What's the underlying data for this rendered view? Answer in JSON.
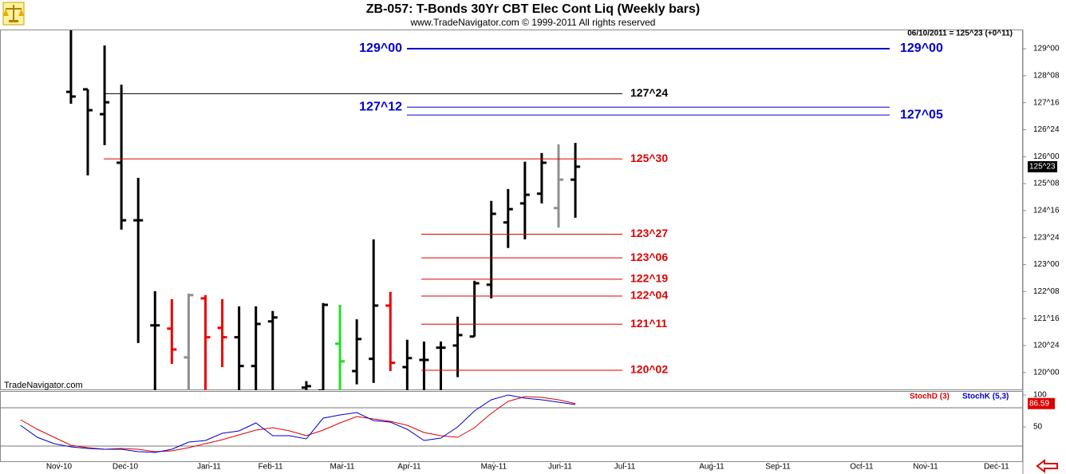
{
  "header": {
    "title": "ZB-057:  T-Bonds 30Yr CBT Elec Cont Liq  (Weekly bars)",
    "subtitle": "www.TradeNavigator.com © 1999-2011 All rights reserved",
    "quote": "06/10/2011 = 125^23 (+0^11)",
    "watermark": "TradeNavigator.com"
  },
  "chart_data": [
    {
      "type": "ohlc",
      "xlim": [
        -4.22,
        56.62
      ],
      "ylim": [
        119.53,
        129.51
      ],
      "x": [
        0,
        1,
        2,
        3,
        4,
        5,
        6,
        7,
        8,
        9,
        10,
        11,
        12,
        14,
        15,
        16,
        17,
        18,
        19,
        20,
        21,
        22,
        23,
        24,
        25,
        26,
        27,
        28,
        29,
        30
      ],
      "open": [
        127.8,
        127.87,
        127.18,
        125.83,
        124.23,
        121.31,
        121.22,
        120.42,
        122.06,
        121.24,
        120.98,
        120.18,
        121.42,
        119.58,
        119.5,
        120.8,
        120.04,
        120.38,
        121.86,
        120.15,
        120.35,
        120.69,
        120.75,
        121.0,
        122.44,
        124.17,
        124.7,
        124.97,
        124.57,
        125.36
      ],
      "high": [
        129.58,
        127.87,
        129.09,
        128.0,
        125.41,
        122.26,
        122.04,
        122.19,
        122.15,
        122.04,
        121.84,
        121.84,
        121.71,
        119.76,
        121.93,
        121.88,
        121.48,
        123.7,
        122.24,
        120.91,
        120.86,
        120.86,
        121.55,
        122.55,
        124.77,
        125.1,
        125.86,
        126.1,
        126.34,
        126.38
      ],
      "low": [
        127.47,
        125.48,
        126.32,
        123.97,
        120.82,
        119.4,
        120.24,
        119.4,
        119.4,
        120.15,
        119.4,
        119.4,
        119.4,
        119.4,
        119.4,
        119.4,
        119.67,
        119.71,
        120.04,
        119.4,
        119.4,
        119.4,
        119.87,
        121.0,
        122.06,
        123.46,
        123.7,
        124.7,
        124.03,
        124.3
      ],
      "close": [
        127.67,
        127.29,
        127.51,
        124.23,
        124.23,
        121.31,
        120.64,
        122.15,
        120.98,
        120.98,
        120.18,
        121.35,
        121.53,
        119.62,
        121.88,
        120.31,
        120.93,
        121.86,
        120.27,
        120.4,
        120.35,
        120.69,
        121.04,
        122.48,
        124.41,
        124.54,
        124.94,
        125.83,
        125.36,
        125.72
      ],
      "colors": [
        "#000000",
        "#000000",
        "#000000",
        "#000000",
        "#000000",
        "#000000",
        "#ee0000",
        "#909090",
        "#ee0000",
        "#ee0000",
        "#000000",
        "#000000",
        "#000000",
        "#000000",
        "#000000",
        "#22dd22",
        "#000000",
        "#000000",
        "#ee0000",
        "#000000",
        "#000000",
        "#000000",
        "#000000",
        "#000000",
        "#000000",
        "#000000",
        "#000000",
        "#000000",
        "#909090",
        "#000000"
      ],
      "yticks": [
        {
          "value": 120,
          "label": "120^00"
        },
        {
          "value": 120.75,
          "label": "120^24"
        },
        {
          "value": 121.5,
          "label": "121^16"
        },
        {
          "value": 122.25,
          "label": "122^08"
        },
        {
          "value": 123,
          "label": "123^00"
        },
        {
          "value": 123.75,
          "label": "123^24"
        },
        {
          "value": 124.5,
          "label": "124^16"
        },
        {
          "value": 125.25,
          "label": "125^08"
        },
        {
          "value": 126,
          "label": "126^00"
        },
        {
          "value": 126.75,
          "label": "126^24"
        },
        {
          "value": 127.5,
          "label": "127^16"
        },
        {
          "value": 128.25,
          "label": "128^08"
        },
        {
          "value": 129,
          "label": "129^00"
        }
      ],
      "last_price": {
        "value": 125.71875,
        "label": "125^23"
      },
      "levels": [
        {
          "value": 129,
          "label": "129^00",
          "color": "#0000cc"
        },
        {
          "value": 127.75,
          "label": "127^24",
          "color": "#000000"
        },
        {
          "value": 127.375,
          "label": "127^12",
          "color": "#0000cc"
        },
        {
          "value": 127.15625,
          "label": "127^05",
          "color": "#0000cc"
        },
        {
          "value": 125.9375,
          "label": "125^30",
          "color": "#dd0000"
        },
        {
          "value": 123.84375,
          "label": "123^27",
          "color": "#dd0000"
        },
        {
          "value": 123.1875,
          "label": "123^06",
          "color": "#dd0000"
        },
        {
          "value": 122.59375,
          "label": "122^19",
          "color": "#dd0000"
        },
        {
          "value": 122.125,
          "label": "122^04",
          "color": "#dd0000"
        },
        {
          "value": 121.34375,
          "label": "121^11",
          "color": "#dd0000"
        },
        {
          "value": 120.0625,
          "label": "120^02",
          "color": "#dd0000"
        }
      ]
    },
    {
      "type": "line",
      "xlim": [
        -4.22,
        56.62
      ],
      "ylim": [
        -3.75,
        105
      ],
      "yticks": [
        50,
        100
      ],
      "ref_lines": [
        80,
        20
      ],
      "x": [
        -3,
        -2,
        -1,
        0,
        1,
        2,
        3,
        4,
        5,
        6,
        7,
        8,
        9,
        10,
        11,
        12,
        13,
        14,
        15,
        16,
        17,
        18,
        19,
        20,
        21,
        22,
        23,
        24,
        25,
        26,
        27,
        28,
        29,
        30
      ],
      "series": [
        {
          "name": "StochD (3)",
          "color": "#dd0000",
          "values": [
            61.25,
            46.25,
            33.75,
            21.25,
            17.5,
            15,
            16.25,
            15,
            11.25,
            12.5,
            17.5,
            23.75,
            30,
            37.5,
            45,
            48.75,
            43.75,
            36.25,
            45,
            56.25,
            66.25,
            62.5,
            58.75,
            52.5,
            41.25,
            36.25,
            33.75,
            48.75,
            71.25,
            90,
            97.5,
            96.25,
            92.5,
            86.59
          ]
        },
        {
          "name": "StochK (5,3)",
          "color": "#0000cc",
          "values": [
            52.5,
            33.75,
            23.75,
            18.75,
            16.25,
            15,
            15,
            11.25,
            10,
            15,
            26.25,
            28.75,
            40,
            43.75,
            56.25,
            36.25,
            36.25,
            31.25,
            63.75,
            68.75,
            72.5,
            60,
            57.5,
            46.25,
            28.75,
            32.5,
            50,
            75,
            92.5,
            100,
            95,
            92.5,
            88.75,
            85
          ]
        }
      ],
      "xticks": [
        {
          "value": -0.71,
          "label": "Nov-10"
        },
        {
          "value": 3.23,
          "label": "Dec-10"
        },
        {
          "value": 8.21,
          "label": "Jan-11"
        },
        {
          "value": 11.87,
          "label": "Feb-11"
        },
        {
          "value": 16.14,
          "label": "Mar-11"
        },
        {
          "value": 20.12,
          "label": "Apr-11"
        },
        {
          "value": 25.15,
          "label": "May-11"
        },
        {
          "value": 29.09,
          "label": "Jun-11"
        },
        {
          "value": 32.94,
          "label": "Jul-11"
        },
        {
          "value": 38.11,
          "label": "Aug-11"
        },
        {
          "value": 42.05,
          "label": "Sep-11"
        },
        {
          "value": 47.03,
          "label": "Oct-11"
        },
        {
          "value": 50.83,
          "label": "Nov-11"
        },
        {
          "value": 55.05,
          "label": "Dec-11"
        }
      ]
    }
  ]
}
